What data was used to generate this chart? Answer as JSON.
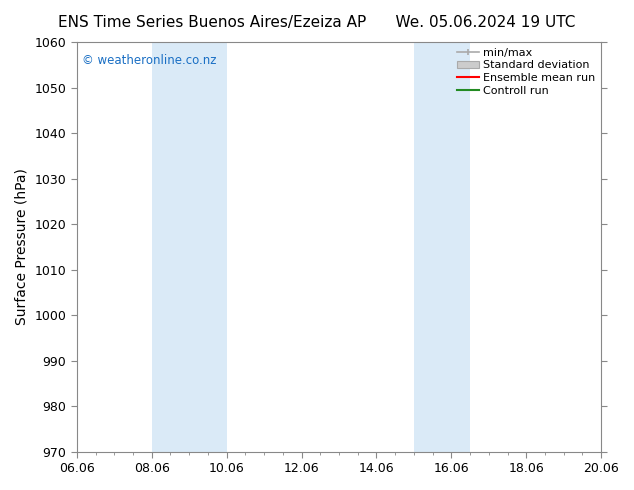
{
  "title_left": "ENS Time Series Buenos Aires/Ezeiza AP",
  "title_right": "We. 05.06.2024 19 UTC",
  "ylabel": "Surface Pressure (hPa)",
  "ylim": [
    970,
    1060
  ],
  "yticks": [
    970,
    980,
    990,
    1000,
    1010,
    1020,
    1030,
    1040,
    1050,
    1060
  ],
  "xlim_start": 6.06,
  "xlim_end": 20.06,
  "xticks": [
    6.06,
    8.06,
    10.06,
    12.06,
    14.06,
    16.06,
    18.06,
    20.06
  ],
  "xticklabels": [
    "06.06",
    "08.06",
    "10.06",
    "12.06",
    "14.06",
    "16.06",
    "18.06",
    "20.06"
  ],
  "shaded_regions": [
    {
      "x_start": 8.06,
      "x_end": 10.06,
      "color": "#daeaf7"
    },
    {
      "x_start": 15.06,
      "x_end": 16.56,
      "color": "#daeaf7"
    }
  ],
  "watermark": "© weatheronline.co.nz",
  "watermark_color": "#1a6fc4",
  "bg_color": "#ffffff",
  "plot_bg_color": "#ffffff",
  "grid_color": "#cccccc",
  "legend_labels": [
    "min/max",
    "Standard deviation",
    "Ensemble mean run",
    "Controll run"
  ],
  "legend_colors": [
    "#aaaaaa",
    "#cccccc",
    "#ff0000",
    "#228b22"
  ],
  "title_fontsize": 11,
  "tick_fontsize": 9,
  "ylabel_fontsize": 10
}
